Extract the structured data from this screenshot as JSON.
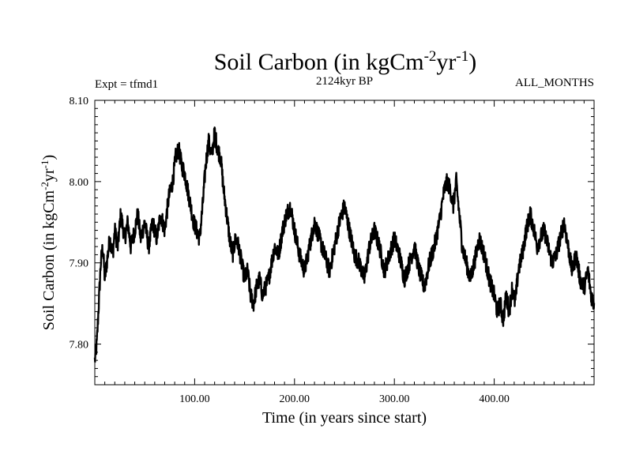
{
  "chart_data": {
    "type": "line",
    "title_main": "Soil Carbon (in kgCm",
    "title_sup1": "-2",
    "title_mid": "yr",
    "title_sup2": "-1",
    "title_end": ")",
    "expt_label": "Expt = tfmd1",
    "period_label": "2124kyr BP",
    "months_label": "ALL_MONTHS",
    "xlabel": "Time (in years since start)",
    "ylabel_main": "Soil Carbon (in kgCm",
    "ylabel_sup1": "-2",
    "ylabel_mid": "yr",
    "ylabel_sup2": "-1",
    "ylabel_end": ")",
    "xlim": [
      0,
      500
    ],
    "ylim": [
      7.75,
      8.1
    ],
    "x_ticks": [
      {
        "value": 100,
        "label": "100.00"
      },
      {
        "value": 200,
        "label": "200.00"
      },
      {
        "value": 300,
        "label": "300.00"
      },
      {
        "value": 400,
        "label": "400.00"
      }
    ],
    "y_ticks": [
      {
        "value": 7.8,
        "label": "7.80"
      },
      {
        "value": 7.9,
        "label": "7.90"
      },
      {
        "value": 8.0,
        "label": "8.00"
      },
      {
        "value": 8.1,
        "label": "8.10"
      }
    ],
    "series": [
      {
        "name": "Soil Carbon",
        "x": [
          0,
          2,
          4,
          6,
          8,
          10,
          12,
          15,
          18,
          20,
          23,
          26,
          30,
          33,
          36,
          40,
          43,
          46,
          50,
          54,
          58,
          62,
          66,
          70,
          74,
          78,
          81,
          84,
          87,
          90,
          93,
          96,
          99,
          102,
          105,
          108,
          111,
          114,
          117,
          120,
          123,
          126,
          129,
          132,
          135,
          138,
          141,
          144,
          147,
          150,
          153,
          156,
          159,
          162,
          165,
          168,
          171,
          174,
          177,
          180,
          184,
          188,
          192,
          196,
          200,
          205,
          210,
          215,
          220,
          225,
          230,
          235,
          240,
          245,
          250,
          255,
          260,
          265,
          270,
          275,
          280,
          285,
          290,
          295,
          300,
          305,
          310,
          315,
          320,
          325,
          330,
          335,
          340,
          345,
          350,
          353,
          356,
          359,
          362,
          365,
          368,
          372,
          376,
          380,
          385,
          390,
          395,
          400,
          403,
          406,
          409,
          412,
          415,
          418,
          421,
          424,
          428,
          432,
          436,
          440,
          443,
          446,
          450,
          454,
          458,
          462,
          466,
          470,
          474,
          478,
          482,
          486,
          490,
          494,
          497,
          500
        ],
        "values": [
          7.78,
          7.8,
          7.85,
          7.9,
          7.92,
          7.88,
          7.9,
          7.93,
          7.91,
          7.94,
          7.92,
          7.96,
          7.93,
          7.95,
          7.92,
          7.94,
          7.96,
          7.93,
          7.95,
          7.92,
          7.95,
          7.93,
          7.96,
          7.94,
          7.98,
          8.0,
          8.03,
          8.04,
          8.02,
          8.01,
          7.99,
          7.97,
          7.95,
          7.94,
          7.93,
          7.97,
          8.02,
          8.05,
          8.03,
          8.06,
          8.04,
          8.03,
          7.99,
          7.96,
          7.93,
          7.91,
          7.93,
          7.92,
          7.9,
          7.88,
          7.89,
          7.86,
          7.85,
          7.87,
          7.88,
          7.86,
          7.87,
          7.88,
          7.9,
          7.92,
          7.91,
          7.94,
          7.96,
          7.97,
          7.94,
          7.91,
          7.89,
          7.92,
          7.95,
          7.93,
          7.91,
          7.89,
          7.92,
          7.95,
          7.97,
          7.94,
          7.91,
          7.9,
          7.88,
          7.92,
          7.94,
          7.92,
          7.89,
          7.91,
          7.93,
          7.91,
          7.88,
          7.9,
          7.92,
          7.89,
          7.87,
          7.9,
          7.92,
          7.95,
          7.99,
          8.0,
          7.99,
          7.97,
          8.0,
          7.96,
          7.92,
          7.9,
          7.88,
          7.9,
          7.93,
          7.91,
          7.88,
          7.86,
          7.84,
          7.85,
          7.83,
          7.86,
          7.84,
          7.87,
          7.85,
          7.89,
          7.91,
          7.94,
          7.96,
          7.94,
          7.92,
          7.93,
          7.94,
          7.92,
          7.9,
          7.91,
          7.93,
          7.95,
          7.92,
          7.89,
          7.91,
          7.88,
          7.87,
          7.89,
          7.86,
          7.85
        ]
      }
    ]
  }
}
